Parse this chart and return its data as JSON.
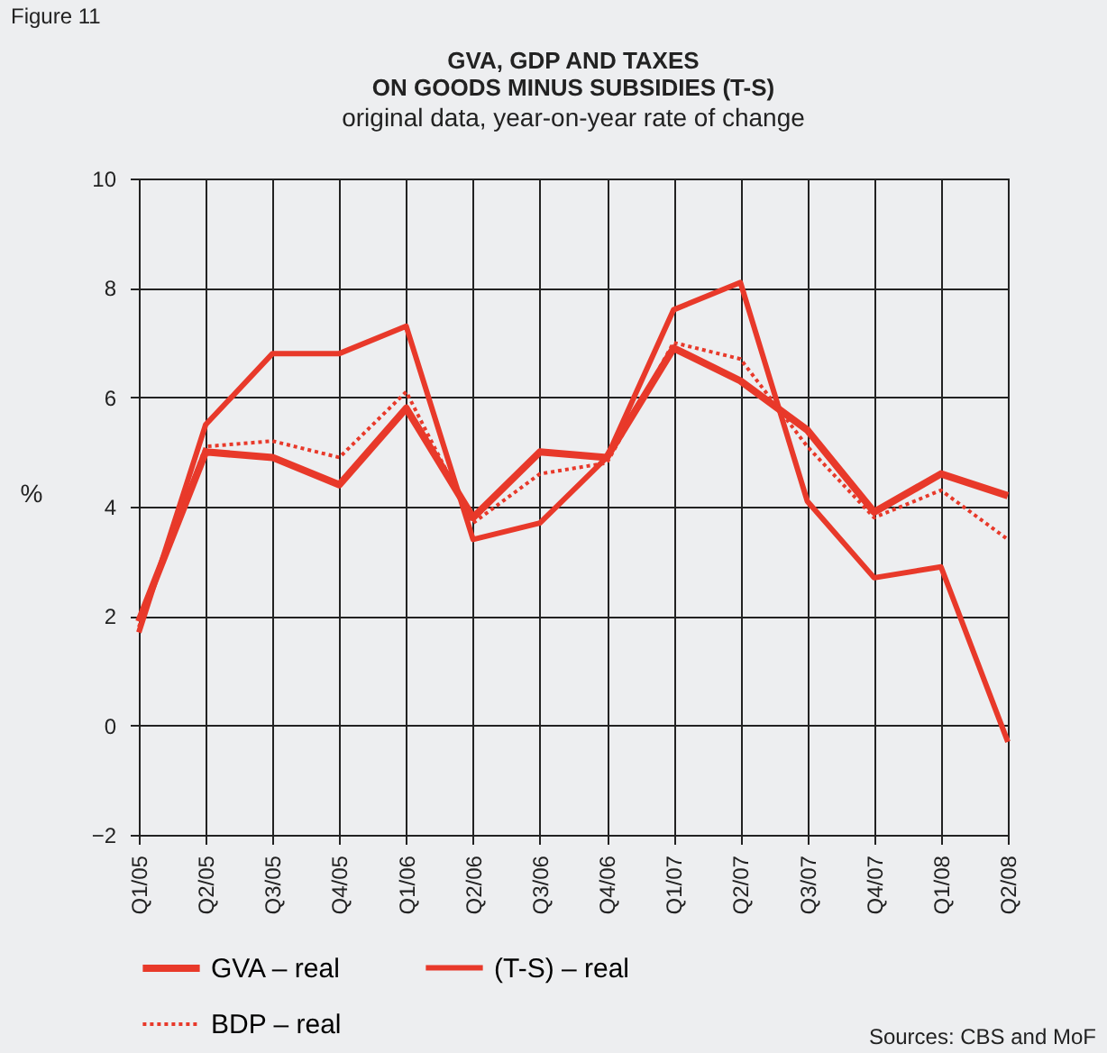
{
  "chart_data": {
    "type": "line",
    "title": "GVA, GDP AND TAXES\nON GOODS MINUS SUBSIDIES (T-S)",
    "subtitle": "original data, year-on-year rate of change",
    "ylabel": "%",
    "categories": [
      "Q1/05",
      "Q2/05",
      "Q3/05",
      "Q4/05",
      "Q1/06",
      "Q2/06",
      "Q3/06",
      "Q4/06",
      "Q1/07",
      "Q2/07",
      "Q3/07",
      "Q4/07",
      "Q1/08",
      "Q2/08"
    ],
    "series": [
      {
        "name": "GVA – real",
        "color": "#e8392a",
        "line_style": "solid",
        "values": [
          1.9,
          5.0,
          4.9,
          4.4,
          5.8,
          3.8,
          5.0,
          4.9,
          6.9,
          6.3,
          5.4,
          3.9,
          4.6,
          4.2
        ]
      },
      {
        "name": "(T-S) – real",
        "color": "#e8392a",
        "line_style": "solid",
        "values": [
          1.7,
          5.5,
          6.8,
          6.8,
          7.3,
          3.4,
          3.7,
          4.9,
          7.6,
          8.1,
          4.1,
          2.7,
          2.9,
          -0.3
        ]
      },
      {
        "name": "BDP – real",
        "color": "#e8392a",
        "line_style": "dotted",
        "values": [
          1.8,
          5.1,
          5.2,
          4.9,
          6.1,
          3.7,
          4.6,
          4.8,
          7.0,
          6.7,
          5.1,
          3.8,
          4.3,
          3.4
        ]
      }
    ],
    "ylim": [
      -2,
      10
    ],
    "yticks": [
      {
        "value": -2,
        "label": "−2"
      },
      0,
      2,
      4,
      6,
      8,
      10
    ],
    "grid": true,
    "legend": "bottom",
    "marker": "none",
    "annotations": [
      "Figure 11",
      "Sources: CBS and MoF"
    ]
  }
}
